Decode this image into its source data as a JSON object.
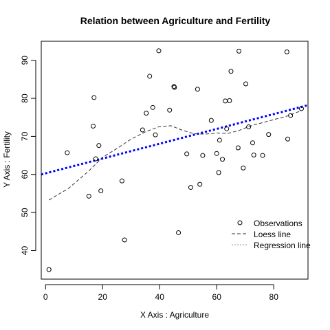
{
  "chart_data": {
    "type": "scatter",
    "title": "Relation between Agriculture and Fertility",
    "xlabel": "X Axis :  Agriculture",
    "ylabel": "Y Axis :  Fertility",
    "xlim": [
      -1.5,
      92
    ],
    "ylim": [
      32.5,
      95
    ],
    "xticks": [
      0,
      20,
      40,
      60,
      80
    ],
    "yticks": [
      40,
      50,
      60,
      70,
      80,
      90
    ],
    "legend_position": "bottom-right",
    "legend": [
      "Observations",
      "Loess line",
      "Regression line"
    ],
    "regression_color": "#0000ff",
    "series": [
      {
        "name": "Observations",
        "marker": "open-circle",
        "points": [
          [
            1.2,
            35.0
          ],
          [
            7.6,
            65.7
          ],
          [
            15.2,
            54.3
          ],
          [
            16.7,
            72.7
          ],
          [
            17.0,
            80.2
          ],
          [
            17.6,
            64.1
          ],
          [
            18.7,
            67.6
          ],
          [
            19.4,
            55.7
          ],
          [
            26.8,
            58.3
          ],
          [
            27.7,
            42.8
          ],
          [
            34.0,
            71.7
          ],
          [
            35.3,
            76.1
          ],
          [
            36.5,
            85.8
          ],
          [
            37.6,
            77.6
          ],
          [
            38.5,
            70.4
          ],
          [
            39.7,
            92.5
          ],
          [
            43.5,
            76.9
          ],
          [
            45.0,
            83.1
          ],
          [
            45.2,
            82.9
          ],
          [
            46.6,
            44.7
          ],
          [
            49.5,
            65.4
          ],
          [
            50.9,
            56.6
          ],
          [
            53.3,
            82.4
          ],
          [
            54.1,
            57.4
          ],
          [
            55.1,
            65.0
          ],
          [
            58.1,
            74.2
          ],
          [
            60.0,
            65.5
          ],
          [
            60.7,
            60.5
          ],
          [
            61.0,
            69.0
          ],
          [
            62.0,
            64.0
          ],
          [
            63.0,
            79.3
          ],
          [
            63.5,
            72.0
          ],
          [
            64.5,
            79.4
          ],
          [
            65.0,
            87.1
          ],
          [
            67.5,
            67.0
          ],
          [
            67.8,
            92.4
          ],
          [
            69.3,
            61.7
          ],
          [
            70.2,
            83.8
          ],
          [
            71.2,
            72.5
          ],
          [
            72.6,
            68.3
          ],
          [
            73.0,
            65.1
          ],
          [
            76.1,
            65.0
          ],
          [
            78.2,
            70.5
          ],
          [
            84.6,
            92.2
          ],
          [
            84.9,
            69.3
          ],
          [
            85.9,
            75.5
          ],
          [
            89.7,
            77.3
          ]
        ]
      },
      {
        "name": "Loess line",
        "style": "dashed",
        "points": [
          [
            1.2,
            53.3
          ],
          [
            8,
            56.3
          ],
          [
            15,
            60.8
          ],
          [
            20,
            64.5
          ],
          [
            25,
            66.8
          ],
          [
            30,
            69.3
          ],
          [
            35,
            71.2
          ],
          [
            40,
            72.6
          ],
          [
            44,
            72.8
          ],
          [
            48,
            71.6
          ],
          [
            52,
            70.7
          ],
          [
            56,
            70.6
          ],
          [
            60,
            70.9
          ],
          [
            64,
            70.8
          ],
          [
            68,
            71.6
          ],
          [
            72,
            72.8
          ],
          [
            76,
            73.6
          ],
          [
            80,
            74.4
          ],
          [
            85,
            75.4
          ],
          [
            89.7,
            76.8
          ]
        ]
      },
      {
        "name": "Regression line",
        "style": "dotted",
        "points": [
          [
            -1.5,
            60.0
          ],
          [
            92,
            78.2
          ]
        ]
      }
    ]
  }
}
